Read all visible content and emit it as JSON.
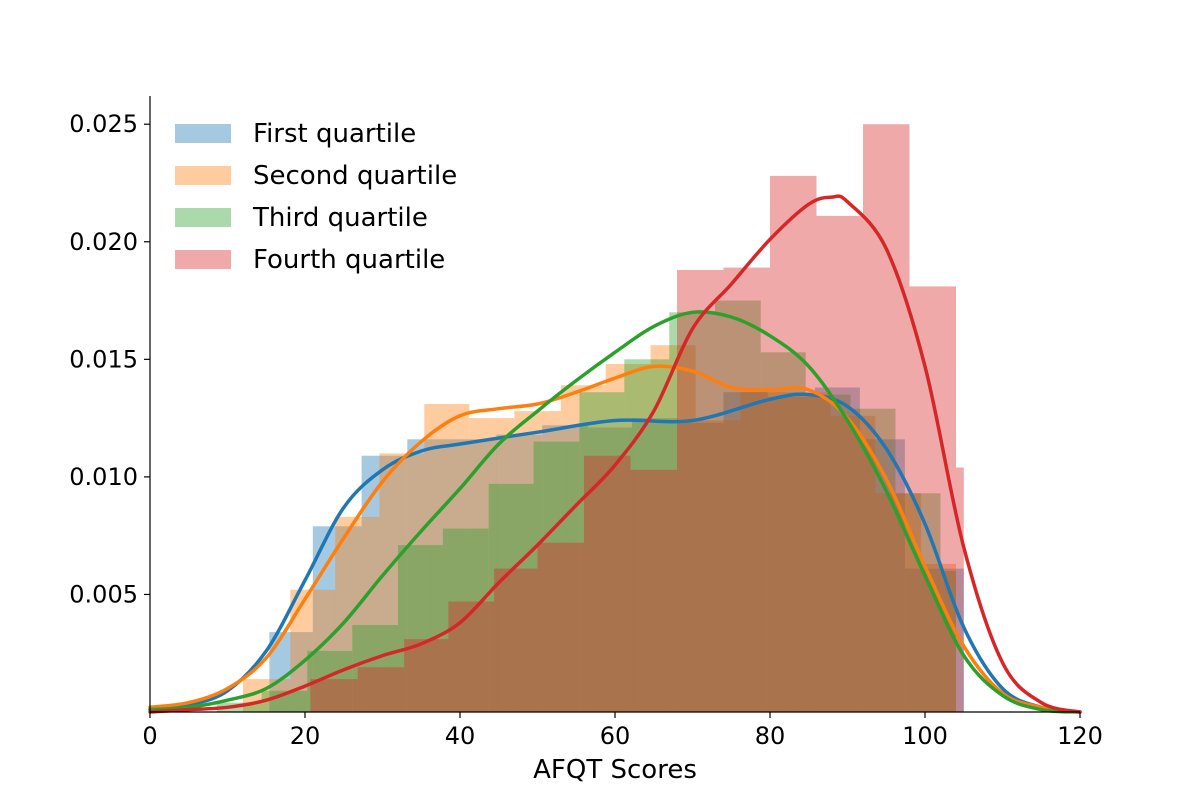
{
  "chart_data": {
    "type": "histogram_kde",
    "title": "",
    "xlabel": "AFQT Scores",
    "ylabel": "",
    "xlim": [
      0,
      120
    ],
    "ylim": [
      0,
      0.0262
    ],
    "x_ticks": [
      0,
      20,
      40,
      60,
      80,
      100,
      120
    ],
    "x_tick_labels": [
      "0",
      "20",
      "40",
      "60",
      "80",
      "100",
      "120"
    ],
    "y_ticks": [
      0.005,
      0.01,
      0.015,
      0.02,
      0.025
    ],
    "y_tick_labels": [
      "0.005",
      "0.010",
      "0.015",
      "0.020",
      "0.025"
    ],
    "legend_position": "top-left",
    "grid": false,
    "series": [
      {
        "name": "First quartile",
        "color": "#1f77b4",
        "bins": [
          [
            15.4,
            21,
            0.0034
          ],
          [
            21,
            27.3,
            0.0079
          ],
          [
            27.3,
            33.2,
            0.0109
          ],
          [
            33.2,
            38.9,
            0.0116
          ],
          [
            38.9,
            44.7,
            0.0116
          ],
          [
            44.7,
            50.6,
            0.0118
          ],
          [
            50.6,
            56.5,
            0.0122
          ],
          [
            56.5,
            62.2,
            0.0121
          ],
          [
            62.2,
            68.1,
            0.0125
          ],
          [
            68.1,
            74,
            0.0123
          ],
          [
            74,
            79.7,
            0.0136
          ],
          [
            79.7,
            85.8,
            0.0134
          ],
          [
            85.8,
            91.6,
            0.0138
          ],
          [
            91.6,
            97.4,
            0.0116
          ],
          [
            97.4,
            104,
            0.0061
          ],
          [
            104,
            105,
            0.0061
          ]
        ],
        "kde": [
          [
            0,
            0.0001
          ],
          [
            5,
            0.0003
          ],
          [
            10,
            0.0009
          ],
          [
            15,
            0.0026
          ],
          [
            20,
            0.0056
          ],
          [
            25,
            0.0087
          ],
          [
            30,
            0.0103
          ],
          [
            35,
            0.0111
          ],
          [
            40,
            0.0114
          ],
          [
            50,
            0.0119
          ],
          [
            60,
            0.0124
          ],
          [
            70,
            0.0124
          ],
          [
            80,
            0.0133
          ],
          [
            85,
            0.0135
          ],
          [
            90,
            0.013
          ],
          [
            95,
            0.0112
          ],
          [
            100,
            0.008
          ],
          [
            105,
            0.0036
          ],
          [
            110,
            0.001
          ],
          [
            115,
            0.0002
          ],
          [
            120,
            0.0
          ]
        ]
      },
      {
        "name": "Second quartile",
        "color": "#ff7f0e",
        "bins": [
          [
            12,
            18.1,
            0.0014
          ],
          [
            18.1,
            23.9,
            0.0052
          ],
          [
            23.9,
            29.6,
            0.0083
          ],
          [
            29.6,
            35.4,
            0.011
          ],
          [
            35.4,
            41.2,
            0.0131
          ],
          [
            41.2,
            47,
            0.0125
          ],
          [
            47,
            53,
            0.0128
          ],
          [
            53,
            58.8,
            0.0139
          ],
          [
            58.8,
            64.6,
            0.0148
          ],
          [
            64.6,
            70.4,
            0.0156
          ],
          [
            70.4,
            76.2,
            0.0124
          ],
          [
            76.2,
            82.1,
            0.0136
          ],
          [
            82.1,
            87.8,
            0.0136
          ],
          [
            87.8,
            93.6,
            0.0126
          ],
          [
            93.6,
            99.5,
            0.0093
          ],
          [
            99.5,
            104,
            0.0063
          ]
        ],
        "kde": [
          [
            0,
            0.0002
          ],
          [
            5,
            0.0004
          ],
          [
            10,
            0.001
          ],
          [
            15,
            0.0023
          ],
          [
            20,
            0.0048
          ],
          [
            25,
            0.0074
          ],
          [
            30,
            0.0098
          ],
          [
            35,
            0.0115
          ],
          [
            40,
            0.0126
          ],
          [
            45,
            0.0129
          ],
          [
            50,
            0.0131
          ],
          [
            55,
            0.0136
          ],
          [
            60,
            0.0142
          ],
          [
            65,
            0.0147
          ],
          [
            70,
            0.0145
          ],
          [
            75,
            0.0138
          ],
          [
            80,
            0.0137
          ],
          [
            85,
            0.0137
          ],
          [
            90,
            0.0125
          ],
          [
            95,
            0.0099
          ],
          [
            100,
            0.0062
          ],
          [
            105,
            0.0028
          ],
          [
            110,
            0.0008
          ],
          [
            115,
            0.0002
          ],
          [
            120,
            0.0
          ]
        ]
      },
      {
        "name": "Third quartile",
        "color": "#2ca02c",
        "bins": [
          [
            8.6,
            14.4,
            0.0004
          ],
          [
            14.4,
            20.3,
            0.0009
          ],
          [
            20.3,
            26.1,
            0.0026
          ],
          [
            26.1,
            32,
            0.0037
          ],
          [
            32,
            37.8,
            0.0071
          ],
          [
            37.8,
            43.7,
            0.0078
          ],
          [
            43.7,
            49.5,
            0.0097
          ],
          [
            49.5,
            55.4,
            0.0115
          ],
          [
            55.4,
            61.2,
            0.0136
          ],
          [
            61.2,
            67,
            0.015
          ],
          [
            67,
            72.9,
            0.017
          ],
          [
            72.9,
            78.8,
            0.0175
          ],
          [
            78.8,
            84.6,
            0.0153
          ],
          [
            84.6,
            90.4,
            0.0135
          ],
          [
            90.4,
            96.2,
            0.0129
          ],
          [
            96.2,
            102,
            0.0093
          ],
          [
            102,
            104,
            0.006
          ]
        ],
        "kde": [
          [
            0,
            0.0001
          ],
          [
            5,
            0.0002
          ],
          [
            10,
            0.0005
          ],
          [
            15,
            0.001
          ],
          [
            20,
            0.0022
          ],
          [
            25,
            0.0038
          ],
          [
            30,
            0.0058
          ],
          [
            35,
            0.0077
          ],
          [
            40,
            0.0095
          ],
          [
            45,
            0.0114
          ],
          [
            50,
            0.0128
          ],
          [
            55,
            0.0141
          ],
          [
            60,
            0.0153
          ],
          [
            65,
            0.0164
          ],
          [
            70,
            0.017
          ],
          [
            75,
            0.0168
          ],
          [
            80,
            0.016
          ],
          [
            85,
            0.0147
          ],
          [
            90,
            0.0124
          ],
          [
            95,
            0.0094
          ],
          [
            100,
            0.0058
          ],
          [
            105,
            0.0024
          ],
          [
            110,
            0.0007
          ],
          [
            115,
            0.0001
          ],
          [
            120,
            0.0
          ]
        ]
      },
      {
        "name": "Fourth quartile",
        "color": "#d62728",
        "bins": [
          [
            20.7,
            26.8,
            0.0014
          ],
          [
            26.8,
            32.8,
            0.0019
          ],
          [
            32.8,
            38.5,
            0.0031
          ],
          [
            38.5,
            44.4,
            0.0047
          ],
          [
            44.4,
            50,
            0.0061
          ],
          [
            50,
            56,
            0.0072
          ],
          [
            56,
            62,
            0.0109
          ],
          [
            62,
            68,
            0.0103
          ],
          [
            68,
            74,
            0.0188
          ],
          [
            74,
            80,
            0.0189
          ],
          [
            80,
            86,
            0.0228
          ],
          [
            86,
            92,
            0.0211
          ],
          [
            92,
            98,
            0.025
          ],
          [
            98,
            104,
            0.0181
          ],
          [
            104,
            105,
            0.0104
          ]
        ],
        "kde": [
          [
            0,
            0.0
          ],
          [
            5,
            0.0001
          ],
          [
            10,
            0.0002
          ],
          [
            15,
            0.0005
          ],
          [
            20,
            0.0011
          ],
          [
            25,
            0.0018
          ],
          [
            30,
            0.0024
          ],
          [
            35,
            0.0029
          ],
          [
            40,
            0.0038
          ],
          [
            45,
            0.0055
          ],
          [
            50,
            0.0071
          ],
          [
            55,
            0.0088
          ],
          [
            60,
            0.0105
          ],
          [
            65,
            0.0128
          ],
          [
            70,
            0.0163
          ],
          [
            75,
            0.0182
          ],
          [
            80,
            0.0201
          ],
          [
            85,
            0.0216
          ],
          [
            88,
            0.0219
          ],
          [
            90,
            0.0217
          ],
          [
            95,
            0.0197
          ],
          [
            100,
            0.0147
          ],
          [
            105,
            0.007
          ],
          [
            110,
            0.0021
          ],
          [
            115,
            0.0004
          ],
          [
            120,
            0.0
          ]
        ]
      }
    ]
  }
}
